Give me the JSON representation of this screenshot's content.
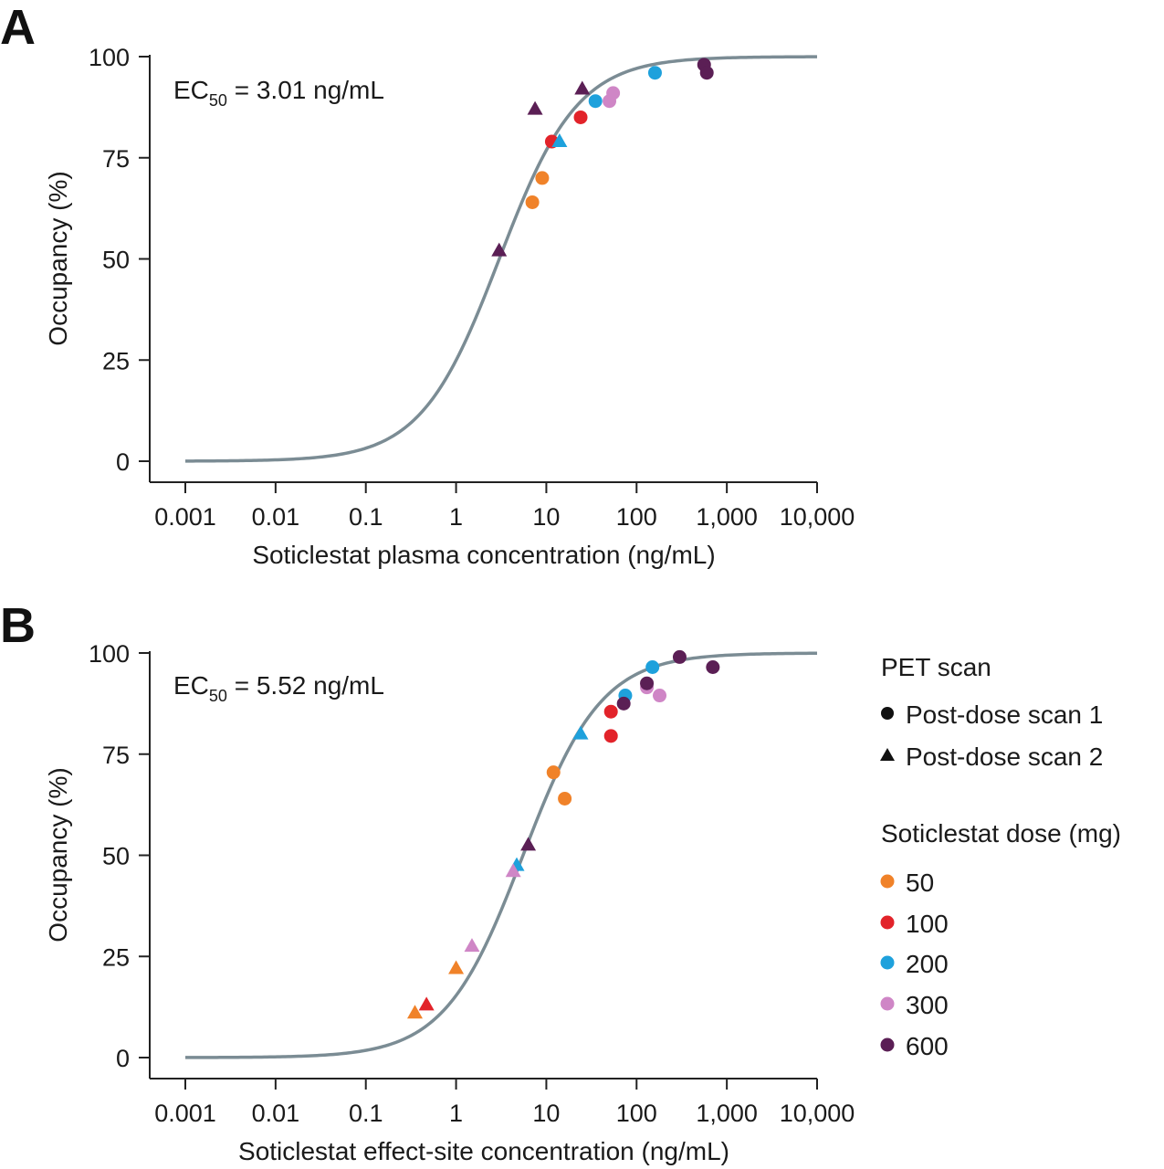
{
  "figure": {
    "panel_a_label": "A",
    "panel_b_label": "B"
  },
  "colors": {
    "curve": "#7b8c94",
    "axis": "#222222",
    "dose_50": "#f08229",
    "dose_100": "#e2232a",
    "dose_200": "#1ea1dc",
    "dose_300": "#cf86c6",
    "dose_600": "#5b1f55"
  },
  "legend": {
    "scan_title": "PET scan",
    "scan_items": [
      {
        "label": "Post-dose scan 1",
        "marker": "circle"
      },
      {
        "label": "Post-dose scan 2",
        "marker": "triangle"
      }
    ],
    "dose_title": "Soticlestat dose (mg)",
    "dose_items": [
      {
        "label": "50",
        "dose": "50"
      },
      {
        "label": "100",
        "dose": "100"
      },
      {
        "label": "200",
        "dose": "200"
      },
      {
        "label": "300",
        "dose": "300"
      },
      {
        "label": "600",
        "dose": "600"
      }
    ]
  },
  "chart_data": [
    {
      "type": "scatter",
      "panel": "A",
      "ec50_prefix": "EC",
      "ec50_sub": "50",
      "ec50_text": " = 3.01 ng/mL",
      "ec50_value": 3.01,
      "xlabel": "Soticlestat plasma concentration (ng/mL)",
      "ylabel": "Occupancy (%)",
      "xscale": "log",
      "xlim": [
        0.001,
        10000
      ],
      "ylim": [
        0,
        100
      ],
      "xticks": [
        0.001,
        0.01,
        0.1,
        1,
        10,
        100,
        1000,
        10000
      ],
      "xtick_labels": [
        "0.001",
        "0.01",
        "0.1",
        "1",
        "10",
        "100",
        "1,000",
        "10,000"
      ],
      "yticks": [
        0,
        25,
        50,
        75,
        100
      ],
      "ytick_labels": [
        "0",
        "25",
        "50",
        "75",
        "100"
      ],
      "points": [
        {
          "x": 7,
          "y": 64,
          "dose": "50",
          "scan": 1
        },
        {
          "x": 9,
          "y": 70,
          "dose": "50",
          "scan": 1
        },
        {
          "x": 11.5,
          "y": 79,
          "dose": "100",
          "scan": 1
        },
        {
          "x": 24,
          "y": 85,
          "dose": "100",
          "scan": 1
        },
        {
          "x": 14,
          "y": 79,
          "dose": "200",
          "scan": 2
        },
        {
          "x": 35,
          "y": 89,
          "dose": "200",
          "scan": 1
        },
        {
          "x": 160,
          "y": 96,
          "dose": "200",
          "scan": 1
        },
        {
          "x": 50,
          "y": 89,
          "dose": "300",
          "scan": 1
        },
        {
          "x": 55,
          "y": 91,
          "dose": "300",
          "scan": 1
        },
        {
          "x": 3,
          "y": 52,
          "dose": "600",
          "scan": 2
        },
        {
          "x": 7.5,
          "y": 87,
          "dose": "600",
          "scan": 2
        },
        {
          "x": 25,
          "y": 92,
          "dose": "600",
          "scan": 2
        },
        {
          "x": 560,
          "y": 98,
          "dose": "600",
          "scan": 1
        },
        {
          "x": 600,
          "y": 96,
          "dose": "600",
          "scan": 1
        }
      ]
    },
    {
      "type": "scatter",
      "panel": "B",
      "ec50_prefix": "EC",
      "ec50_sub": "50",
      "ec50_text": " = 5.52 ng/mL",
      "ec50_value": 5.52,
      "xlabel": "Soticlestat effect-site concentration (ng/mL)",
      "ylabel": "Occupancy (%)",
      "xscale": "log",
      "xlim": [
        0.001,
        10000
      ],
      "ylim": [
        0,
        100
      ],
      "xticks": [
        0.001,
        0.01,
        0.1,
        1,
        10,
        100,
        1000,
        10000
      ],
      "xtick_labels": [
        "0.001",
        "0.01",
        "0.1",
        "1",
        "10",
        "100",
        "1,000",
        "10,000"
      ],
      "yticks": [
        0,
        25,
        50,
        75,
        100
      ],
      "ytick_labels": [
        "0",
        "25",
        "50",
        "75",
        "100"
      ],
      "points": [
        {
          "x": 0.35,
          "y": 11,
          "dose": "50",
          "scan": 2
        },
        {
          "x": 1,
          "y": 22,
          "dose": "50",
          "scan": 2
        },
        {
          "x": 12,
          "y": 70.5,
          "dose": "50",
          "scan": 1
        },
        {
          "x": 16,
          "y": 64,
          "dose": "50",
          "scan": 1
        },
        {
          "x": 0.47,
          "y": 13,
          "dose": "100",
          "scan": 2
        },
        {
          "x": 52,
          "y": 85.5,
          "dose": "100",
          "scan": 1
        },
        {
          "x": 52,
          "y": 79.5,
          "dose": "100",
          "scan": 1
        },
        {
          "x": 4.7,
          "y": 47.5,
          "dose": "200",
          "scan": 2
        },
        {
          "x": 24,
          "y": 80,
          "dose": "200",
          "scan": 2
        },
        {
          "x": 75,
          "y": 89.5,
          "dose": "200",
          "scan": 1
        },
        {
          "x": 150,
          "y": 96.5,
          "dose": "200",
          "scan": 1
        },
        {
          "x": 1.5,
          "y": 27.5,
          "dose": "300",
          "scan": 2
        },
        {
          "x": 4.3,
          "y": 46,
          "dose": "300",
          "scan": 2
        },
        {
          "x": 130,
          "y": 91.5,
          "dose": "300",
          "scan": 1
        },
        {
          "x": 180,
          "y": 89.5,
          "dose": "300",
          "scan": 1
        },
        {
          "x": 6.3,
          "y": 52.5,
          "dose": "600",
          "scan": 2
        },
        {
          "x": 72,
          "y": 87.5,
          "dose": "600",
          "scan": 1
        },
        {
          "x": 130,
          "y": 92.5,
          "dose": "600",
          "scan": 1
        },
        {
          "x": 300,
          "y": 99,
          "dose": "600",
          "scan": 1
        },
        {
          "x": 700,
          "y": 96.5,
          "dose": "600",
          "scan": 1
        }
      ]
    }
  ]
}
